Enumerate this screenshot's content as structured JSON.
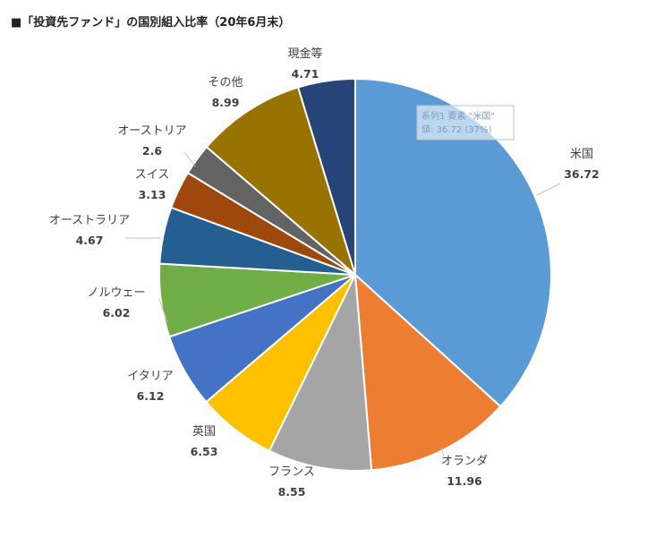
{
  "chart_data": {
    "type": "pie",
    "title": "■「投資先ファンド」の国別組入比率（20年6月末）",
    "slices": [
      {
        "label": "米国",
        "value": 36.72,
        "color": "#5b9bd5"
      },
      {
        "label": "オランダ",
        "value": 11.96,
        "color": "#ed7d31"
      },
      {
        "label": "フランス",
        "value": 8.55,
        "color": "#a5a5a5"
      },
      {
        "label": "英国",
        "value": 6.53,
        "color": "#ffc000"
      },
      {
        "label": "イタリア",
        "value": 6.12,
        "color": "#4472c4"
      },
      {
        "label": "ノルウェー",
        "value": 6.02,
        "color": "#70ad47"
      },
      {
        "label": "オーストラリア",
        "value": 4.67,
        "color": "#255e91"
      },
      {
        "label": "スイス",
        "value": 3.13,
        "color": "#9e480e"
      },
      {
        "label": "オーストリア",
        "value": 2.6,
        "color": "#636363"
      },
      {
        "label": "その他",
        "value": 8.99,
        "color": "#997300"
      },
      {
        "label": "現金等",
        "value": 4.71,
        "color": "#264478"
      }
    ],
    "value_labels": [
      "36.72",
      "11.96",
      "8.55",
      "6.53",
      "6.12",
      "6.02",
      "4.67",
      "3.13",
      "2.6",
      "8.99",
      "4.71"
    ],
    "legend": "none",
    "tooltip": {
      "line1": "系列1 要素 \"米国\"",
      "line2": "値: 36.72 (37%)"
    }
  }
}
